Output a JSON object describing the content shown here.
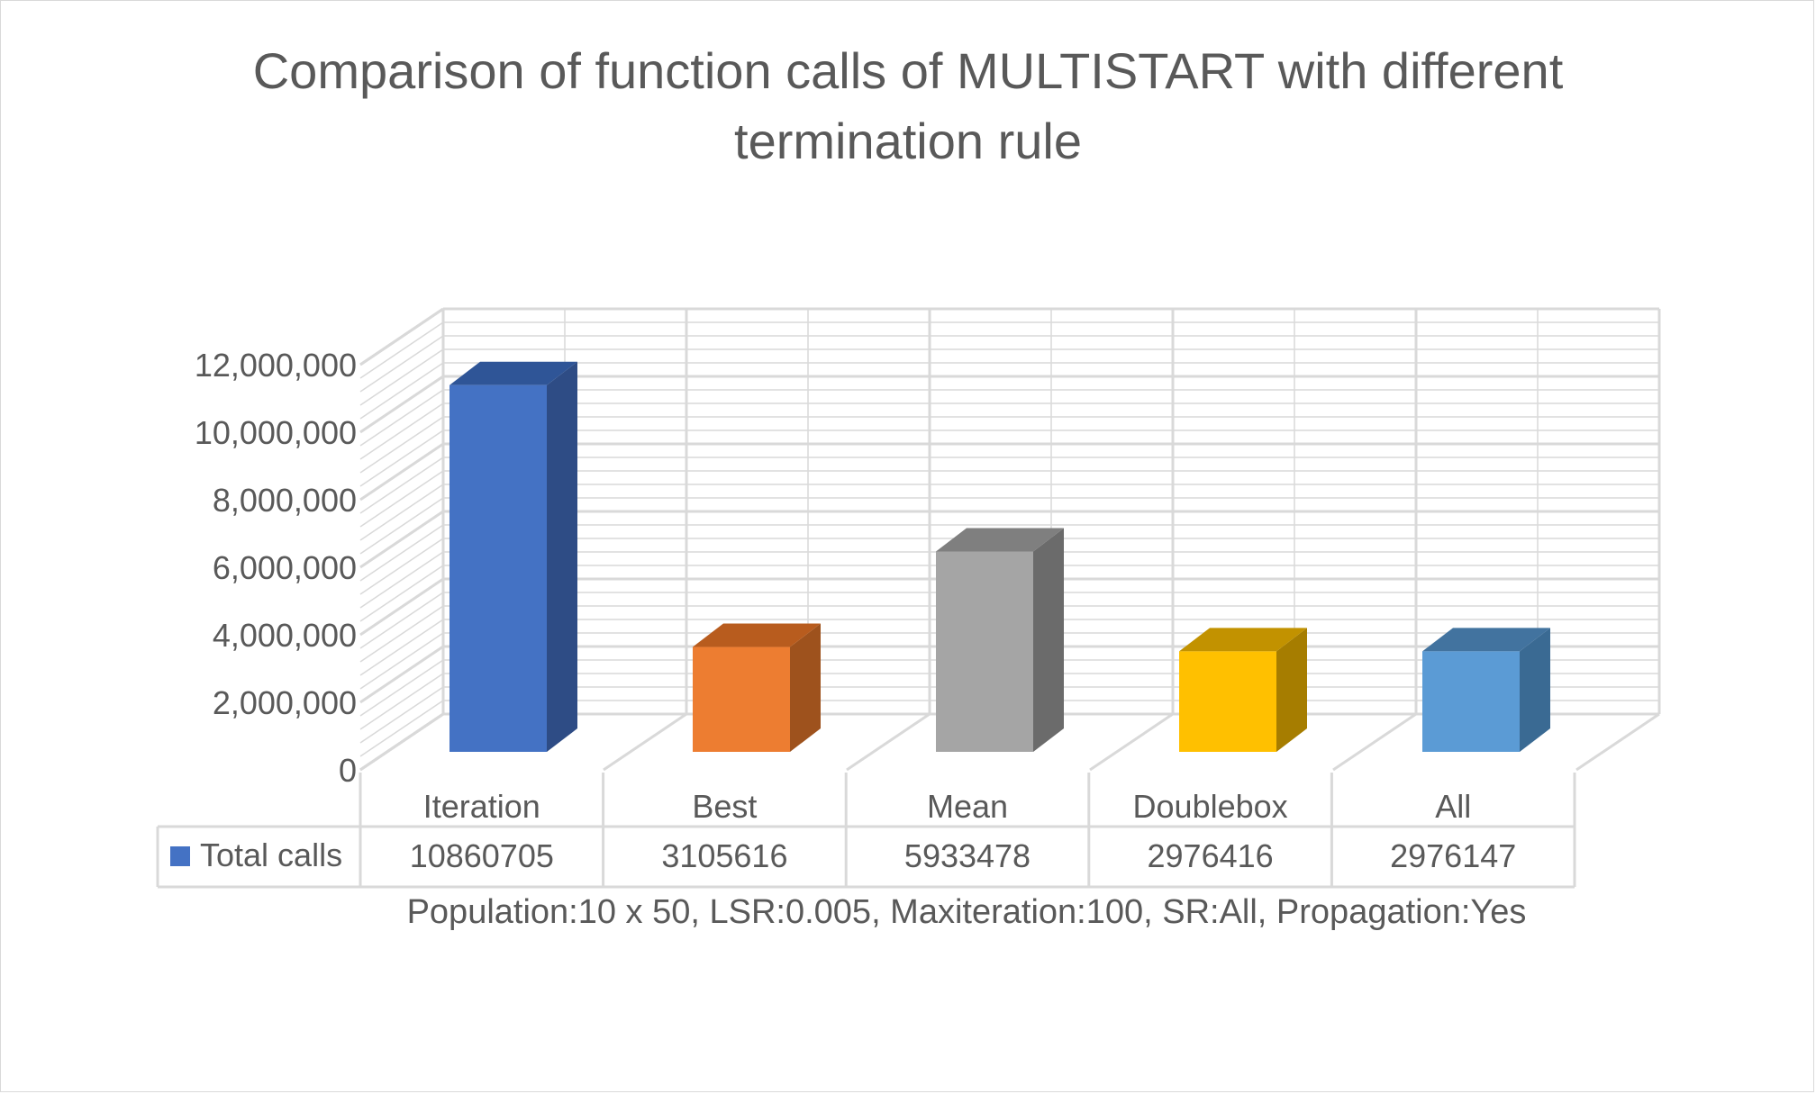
{
  "chart_data": {
    "type": "bar",
    "title_line1": "Comparison of function calls of MULTISTART with different",
    "title_line2": "termination rule",
    "categories": [
      "Iteration",
      "Best",
      "Mean",
      "Doublebox",
      "All"
    ],
    "series": [
      {
        "name": "Total calls",
        "values": [
          10860705,
          3105616,
          5933478,
          2976416,
          2976147
        ],
        "value_labels": [
          "10860705",
          "3105616",
          "5933478",
          "2976416",
          "2976147"
        ]
      }
    ],
    "bar_colors": [
      {
        "front": "#4472c4",
        "side": "#2e4c85",
        "top": "#2f5597"
      },
      {
        "front": "#ed7d31",
        "side": "#9e521d",
        "top": "#b85c1e"
      },
      {
        "front": "#a5a5a5",
        "side": "#6b6b6b",
        "top": "#7f7f7f"
      },
      {
        "front": "#ffc000",
        "side": "#a67d00",
        "top": "#c29200"
      },
      {
        "front": "#5b9bd5",
        "side": "#3a6a93",
        "top": "#42739f"
      }
    ],
    "legend_color": "#4472c4",
    "y_ticks": [
      "0",
      "2,000,000",
      "4,000,000",
      "6,000,000",
      "8,000,000",
      "10,000,000",
      "12,000,000"
    ],
    "ylim": [
      0,
      12000000
    ],
    "xlabel": "Population:10 x 50, LSR:0.005, Maxiteration:100, SR:All, Propagation:Yes",
    "ylabel": "",
    "grid": true,
    "view": "3d-clustered-column-with-data-table"
  }
}
